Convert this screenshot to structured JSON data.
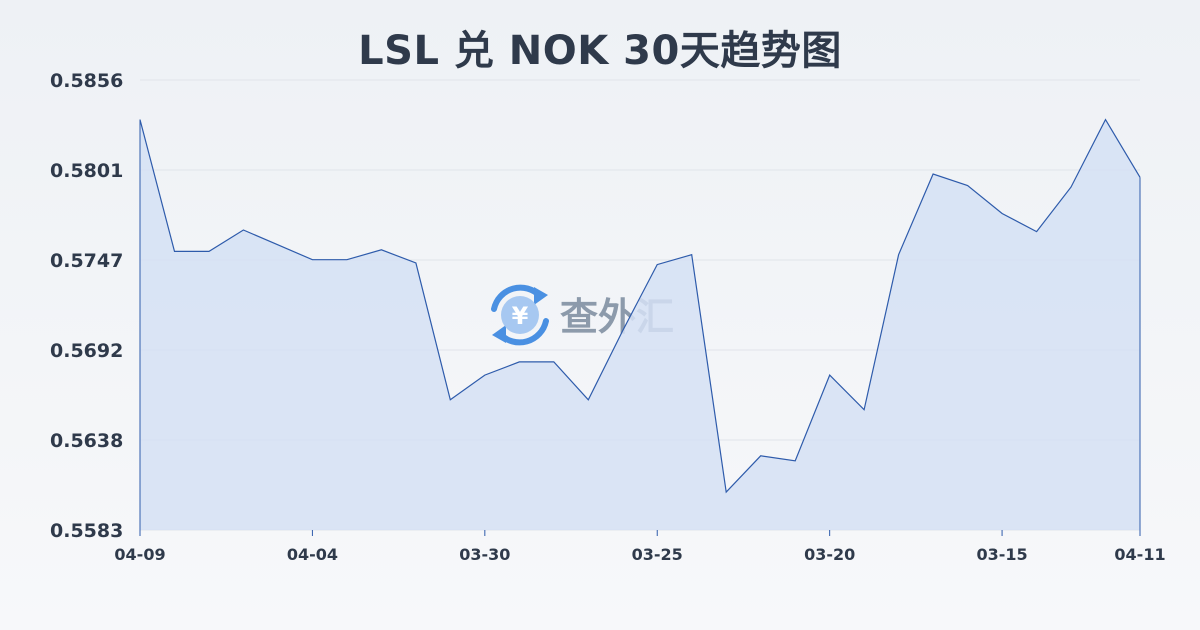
{
  "colors": {
    "line": "#2e5bab",
    "fill": "#d5e0f4",
    "grid": "#e0e4ea",
    "text": "#2f3a4b",
    "watermark": "#4a90e2"
  },
  "watermark": {
    "text": "查外汇",
    "icon": "yen-exchange-icon"
  },
  "chart_data": {
    "type": "area",
    "title": "LSL 兑 NOK 30天趋势图",
    "ylim": [
      0.5583,
      0.5856
    ],
    "yticks": [
      "0.5856",
      "0.5801",
      "0.5747",
      "0.5692",
      "0.5638",
      "0.5583"
    ],
    "xtick_labels": [
      "04-09",
      "04-04",
      "03-30",
      "03-25",
      "03-20",
      "03-15",
      "04-11"
    ],
    "grid": true,
    "legend": "none",
    "values": [
      0.5832,
      0.5752,
      0.5752,
      0.5765,
      0.5756,
      0.5747,
      0.5747,
      0.5753,
      0.5745,
      0.5662,
      0.5677,
      0.5685,
      0.5685,
      0.5662,
      0.5704,
      0.5744,
      0.575,
      0.5606,
      0.5628,
      0.5625,
      0.5677,
      0.5656,
      0.575,
      0.5799,
      0.5792,
      0.5775,
      0.5764,
      0.5791,
      0.5832,
      0.5797
    ]
  }
}
